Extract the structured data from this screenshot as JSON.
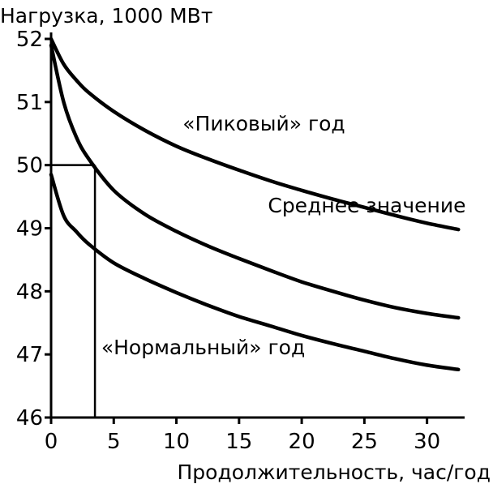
{
  "chart_data": {
    "type": "line",
    "title": "",
    "ylabel": "Нагрузка, 1000 МВт",
    "xlabel": "Продолжительность, час/год",
    "xlim": [
      0,
      33
    ],
    "ylim": [
      46,
      52
    ],
    "xticks": [
      0,
      5,
      10,
      15,
      20,
      25,
      30
    ],
    "yticks": [
      46,
      47,
      48,
      49,
      50,
      51,
      52
    ],
    "grid": false,
    "legend": "none",
    "series": [
      {
        "name": "«Пиковый» год",
        "x": [
          0,
          1,
          2,
          3,
          5,
          7.5,
          10,
          12.5,
          15,
          17.5,
          20,
          22.5,
          25,
          27.5,
          30,
          32.5
        ],
        "y": [
          52.0,
          51.6,
          51.35,
          51.15,
          50.85,
          50.55,
          50.3,
          50.1,
          49.92,
          49.75,
          49.6,
          49.46,
          49.33,
          49.2,
          49.08,
          48.98
        ]
      },
      {
        "name": "Среднее значение",
        "x": [
          0,
          1,
          2,
          3,
          5,
          7.5,
          10,
          12.5,
          15,
          17.5,
          20,
          22.5,
          25,
          27.5,
          30,
          32.5
        ],
        "y": [
          51.9,
          51.0,
          50.45,
          50.1,
          49.6,
          49.22,
          48.95,
          48.72,
          48.52,
          48.33,
          48.15,
          48.0,
          47.86,
          47.74,
          47.65,
          47.58
        ]
      },
      {
        "name": "«Нормальный» год",
        "x": [
          0,
          1,
          2,
          3,
          5,
          7.5,
          10,
          12.5,
          15,
          17.5,
          20,
          22.5,
          25,
          27.5,
          30,
          32.5
        ],
        "y": [
          49.85,
          49.2,
          48.95,
          48.75,
          48.45,
          48.2,
          47.98,
          47.78,
          47.6,
          47.45,
          47.3,
          47.17,
          47.05,
          46.93,
          46.83,
          46.76
        ]
      }
    ],
    "reference_lines": [
      {
        "type": "h",
        "y": 50,
        "x0": 0,
        "x1": 3.5
      },
      {
        "type": "v",
        "x": 3.5,
        "y0": 46,
        "y1": 50
      }
    ],
    "annotations": [
      {
        "text": "«Пиковый» год",
        "x": 10.5,
        "y": 50.55
      },
      {
        "text": "Среднее значение",
        "x": 17.3,
        "y": 49.25
      },
      {
        "text": "«Нормальный» год",
        "x": 4.0,
        "y": 47.0
      }
    ]
  }
}
